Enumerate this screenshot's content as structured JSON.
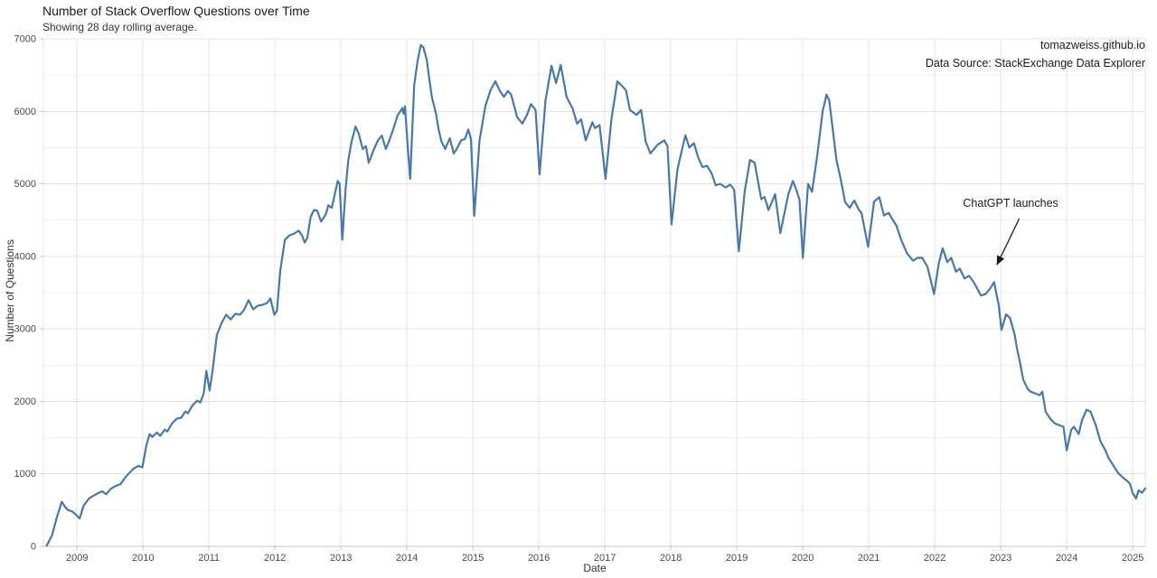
{
  "header": {
    "title": "Number of Stack Overflow Questions over Time",
    "subtitle": "Showing 28 day rolling average."
  },
  "source": {
    "site": "tomazweiss.github.io",
    "data_source": "Data Source: StackExchange Data Explorer"
  },
  "colors": {
    "line": "#4878a8",
    "grid_major": "#e3e3e3",
    "grid_minor": "#efefef",
    "axis": "#c6c6c6",
    "tick_text": "#4a4a4a",
    "annotation": "#1a1a1a"
  },
  "chart_data": {
    "type": "line",
    "title": "Number of Stack Overflow Questions over Time",
    "subtitle": "Showing 28 day rolling average.",
    "xlabel": "Date",
    "ylabel": "Number of Questions",
    "xlim": [
      2008.49,
      2025.19
    ],
    "ylim": [
      0,
      7000
    ],
    "x_ticks": [
      2009,
      2010,
      2011,
      2012,
      2013,
      2014,
      2015,
      2016,
      2017,
      2018,
      2019,
      2020,
      2021,
      2022,
      2023,
      2024,
      2025
    ],
    "y_ticks": [
      0,
      1000,
      2000,
      3000,
      4000,
      5000,
      6000,
      7000
    ],
    "y_minor_step": 500,
    "grid": true,
    "legend": "none",
    "annotation": {
      "label": "ChatGPT launches",
      "text_at": [
        2023.15,
        4730
      ],
      "arrow_from": [
        2023.28,
        4520
      ],
      "arrow_to": [
        2022.94,
        3880
      ]
    },
    "series": [
      {
        "name": "28 day rolling average",
        "points": [
          [
            2008.54,
            10
          ],
          [
            2008.62,
            150
          ],
          [
            2008.7,
            420
          ],
          [
            2008.77,
            615
          ],
          [
            2008.82,
            540
          ],
          [
            2008.87,
            500
          ],
          [
            2008.93,
            480
          ],
          [
            2008.98,
            440
          ],
          [
            2009.04,
            385
          ],
          [
            2009.1,
            560
          ],
          [
            2009.18,
            660
          ],
          [
            2009.25,
            700
          ],
          [
            2009.32,
            735
          ],
          [
            2009.38,
            760
          ],
          [
            2009.44,
            720
          ],
          [
            2009.52,
            800
          ],
          [
            2009.59,
            835
          ],
          [
            2009.66,
            860
          ],
          [
            2009.73,
            950
          ],
          [
            2009.79,
            1010
          ],
          [
            2009.86,
            1075
          ],
          [
            2009.93,
            1110
          ],
          [
            2009.99,
            1090
          ],
          [
            2010.05,
            1390
          ],
          [
            2010.1,
            1550
          ],
          [
            2010.14,
            1510
          ],
          [
            2010.21,
            1570
          ],
          [
            2010.26,
            1525
          ],
          [
            2010.33,
            1610
          ],
          [
            2010.37,
            1585
          ],
          [
            2010.44,
            1695
          ],
          [
            2010.51,
            1760
          ],
          [
            2010.58,
            1775
          ],
          [
            2010.64,
            1860
          ],
          [
            2010.68,
            1835
          ],
          [
            2010.75,
            1945
          ],
          [
            2010.82,
            2010
          ],
          [
            2010.87,
            1985
          ],
          [
            2010.92,
            2110
          ],
          [
            2010.96,
            2420
          ],
          [
            2011.01,
            2150
          ],
          [
            2011.05,
            2400
          ],
          [
            2011.12,
            2920
          ],
          [
            2011.19,
            3080
          ],
          [
            2011.26,
            3195
          ],
          [
            2011.33,
            3130
          ],
          [
            2011.4,
            3210
          ],
          [
            2011.47,
            3195
          ],
          [
            2011.53,
            3260
          ],
          [
            2011.6,
            3395
          ],
          [
            2011.67,
            3270
          ],
          [
            2011.74,
            3320
          ],
          [
            2011.81,
            3330
          ],
          [
            2011.88,
            3355
          ],
          [
            2011.93,
            3420
          ],
          [
            2011.99,
            3195
          ],
          [
            2012.03,
            3250
          ],
          [
            2012.08,
            3795
          ],
          [
            2012.15,
            4230
          ],
          [
            2012.22,
            4290
          ],
          [
            2012.29,
            4315
          ],
          [
            2012.36,
            4355
          ],
          [
            2012.41,
            4290
          ],
          [
            2012.45,
            4190
          ],
          [
            2012.49,
            4255
          ],
          [
            2012.54,
            4540
          ],
          [
            2012.59,
            4640
          ],
          [
            2012.64,
            4630
          ],
          [
            2012.7,
            4480
          ],
          [
            2012.77,
            4580
          ],
          [
            2012.81,
            4705
          ],
          [
            2012.86,
            4670
          ],
          [
            2012.9,
            4830
          ],
          [
            2012.95,
            5040
          ],
          [
            2012.98,
            5000
          ],
          [
            2013.02,
            4230
          ],
          [
            2013.07,
            4920
          ],
          [
            2013.11,
            5315
          ],
          [
            2013.16,
            5580
          ],
          [
            2013.22,
            5790
          ],
          [
            2013.27,
            5690
          ],
          [
            2013.33,
            5480
          ],
          [
            2013.38,
            5520
          ],
          [
            2013.42,
            5290
          ],
          [
            2013.49,
            5455
          ],
          [
            2013.56,
            5600
          ],
          [
            2013.62,
            5665
          ],
          [
            2013.68,
            5480
          ],
          [
            2013.73,
            5590
          ],
          [
            2013.79,
            5750
          ],
          [
            2013.86,
            5950
          ],
          [
            2013.9,
            6000
          ],
          [
            2013.93,
            6045
          ],
          [
            2013.95,
            5970
          ],
          [
            2013.97,
            6070
          ],
          [
            2014.02,
            5400
          ],
          [
            2014.05,
            5070
          ],
          [
            2014.11,
            6355
          ],
          [
            2014.16,
            6690
          ],
          [
            2014.21,
            6915
          ],
          [
            2014.25,
            6880
          ],
          [
            2014.3,
            6715
          ],
          [
            2014.34,
            6440
          ],
          [
            2014.38,
            6190
          ],
          [
            2014.44,
            5970
          ],
          [
            2014.48,
            5755
          ],
          [
            2014.52,
            5590
          ],
          [
            2014.58,
            5480
          ],
          [
            2014.65,
            5630
          ],
          [
            2014.71,
            5420
          ],
          [
            2014.75,
            5470
          ],
          [
            2014.82,
            5600
          ],
          [
            2014.88,
            5620
          ],
          [
            2014.93,
            5750
          ],
          [
            2014.97,
            5620
          ],
          [
            2015.02,
            4560
          ],
          [
            2015.1,
            5600
          ],
          [
            2015.19,
            6080
          ],
          [
            2015.27,
            6300
          ],
          [
            2015.34,
            6415
          ],
          [
            2015.41,
            6280
          ],
          [
            2015.47,
            6200
          ],
          [
            2015.53,
            6280
          ],
          [
            2015.58,
            6230
          ],
          [
            2015.67,
            5920
          ],
          [
            2015.75,
            5830
          ],
          [
            2015.82,
            5950
          ],
          [
            2015.88,
            6100
          ],
          [
            2015.95,
            6020
          ],
          [
            2016.01,
            5130
          ],
          [
            2016.1,
            6150
          ],
          [
            2016.19,
            6630
          ],
          [
            2016.26,
            6390
          ],
          [
            2016.33,
            6640
          ],
          [
            2016.42,
            6200
          ],
          [
            2016.51,
            6040
          ],
          [
            2016.58,
            5830
          ],
          [
            2016.64,
            5890
          ],
          [
            2016.71,
            5600
          ],
          [
            2016.81,
            5850
          ],
          [
            2016.85,
            5770
          ],
          [
            2016.92,
            5810
          ],
          [
            2017.01,
            5070
          ],
          [
            2017.1,
            5900
          ],
          [
            2017.19,
            6415
          ],
          [
            2017.26,
            6350
          ],
          [
            2017.32,
            6290
          ],
          [
            2017.38,
            6020
          ],
          [
            2017.48,
            5950
          ],
          [
            2017.55,
            6020
          ],
          [
            2017.62,
            5580
          ],
          [
            2017.69,
            5420
          ],
          [
            2017.8,
            5540
          ],
          [
            2017.9,
            5600
          ],
          [
            2017.95,
            5520
          ],
          [
            2018.01,
            4440
          ],
          [
            2018.1,
            5200
          ],
          [
            2018.22,
            5670
          ],
          [
            2018.28,
            5500
          ],
          [
            2018.35,
            5560
          ],
          [
            2018.42,
            5350
          ],
          [
            2018.48,
            5230
          ],
          [
            2018.55,
            5250
          ],
          [
            2018.62,
            5140
          ],
          [
            2018.68,
            4980
          ],
          [
            2018.75,
            5000
          ],
          [
            2018.83,
            4950
          ],
          [
            2018.9,
            4990
          ],
          [
            2018.96,
            4920
          ],
          [
            2019.03,
            4070
          ],
          [
            2019.12,
            4900
          ],
          [
            2019.2,
            5330
          ],
          [
            2019.27,
            5290
          ],
          [
            2019.37,
            4790
          ],
          [
            2019.42,
            4820
          ],
          [
            2019.48,
            4640
          ],
          [
            2019.58,
            4855
          ],
          [
            2019.66,
            4320
          ],
          [
            2019.78,
            4855
          ],
          [
            2019.85,
            5040
          ],
          [
            2019.9,
            4920
          ],
          [
            2019.95,
            4780
          ],
          [
            2020.0,
            3980
          ],
          [
            2020.08,
            5000
          ],
          [
            2020.14,
            4890
          ],
          [
            2020.22,
            5400
          ],
          [
            2020.3,
            6000
          ],
          [
            2020.36,
            6230
          ],
          [
            2020.4,
            6150
          ],
          [
            2020.51,
            5330
          ],
          [
            2020.58,
            5040
          ],
          [
            2020.64,
            4750
          ],
          [
            2020.71,
            4670
          ],
          [
            2020.78,
            4770
          ],
          [
            2020.85,
            4640
          ],
          [
            2020.89,
            4600
          ],
          [
            2020.99,
            4130
          ],
          [
            2021.08,
            4755
          ],
          [
            2021.16,
            4815
          ],
          [
            2021.23,
            4565
          ],
          [
            2021.3,
            4600
          ],
          [
            2021.42,
            4420
          ],
          [
            2021.49,
            4230
          ],
          [
            2021.58,
            4040
          ],
          [
            2021.67,
            3940
          ],
          [
            2021.74,
            3980
          ],
          [
            2021.81,
            3980
          ],
          [
            2021.89,
            3855
          ],
          [
            2021.99,
            3480
          ],
          [
            2022.06,
            3900
          ],
          [
            2022.12,
            4110
          ],
          [
            2022.19,
            3920
          ],
          [
            2022.25,
            3980
          ],
          [
            2022.32,
            3790
          ],
          [
            2022.38,
            3830
          ],
          [
            2022.45,
            3695
          ],
          [
            2022.52,
            3730
          ],
          [
            2022.59,
            3645
          ],
          [
            2022.7,
            3460
          ],
          [
            2022.77,
            3480
          ],
          [
            2022.84,
            3560
          ],
          [
            2022.9,
            3645
          ],
          [
            2022.97,
            3320
          ],
          [
            2023.01,
            2985
          ],
          [
            2023.08,
            3200
          ],
          [
            2023.14,
            3150
          ],
          [
            2023.21,
            2920
          ],
          [
            2023.25,
            2710
          ],
          [
            2023.29,
            2545
          ],
          [
            2023.34,
            2300
          ],
          [
            2023.41,
            2170
          ],
          [
            2023.45,
            2135
          ],
          [
            2023.52,
            2110
          ],
          [
            2023.59,
            2085
          ],
          [
            2023.63,
            2135
          ],
          [
            2023.68,
            1860
          ],
          [
            2023.75,
            1760
          ],
          [
            2023.82,
            1695
          ],
          [
            2023.89,
            1670
          ],
          [
            2023.95,
            1650
          ],
          [
            2024.0,
            1325
          ],
          [
            2024.07,
            1610
          ],
          [
            2024.11,
            1650
          ],
          [
            2024.18,
            1550
          ],
          [
            2024.23,
            1735
          ],
          [
            2024.3,
            1885
          ],
          [
            2024.36,
            1860
          ],
          [
            2024.44,
            1670
          ],
          [
            2024.51,
            1450
          ],
          [
            2024.58,
            1335
          ],
          [
            2024.64,
            1210
          ],
          [
            2024.71,
            1110
          ],
          [
            2024.78,
            1010
          ],
          [
            2024.85,
            950
          ],
          [
            2024.92,
            900
          ],
          [
            2024.96,
            860
          ],
          [
            2025.0,
            735
          ],
          [
            2025.05,
            660
          ],
          [
            2025.09,
            775
          ],
          [
            2025.14,
            740
          ],
          [
            2025.19,
            800
          ]
        ]
      }
    ]
  }
}
